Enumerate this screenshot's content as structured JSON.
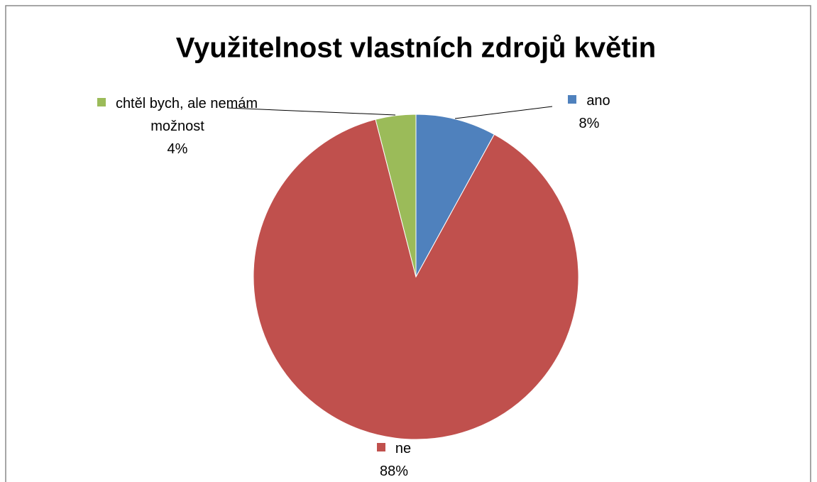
{
  "chart_data": {
    "type": "pie",
    "title": "Využitelnost vlastních zdrojů květin",
    "categories": [
      "ano",
      "ne",
      "chtěl bych, ale nemám možnost"
    ],
    "values": [
      8,
      88,
      4
    ],
    "value_labels": [
      "8%",
      "88%",
      "4%"
    ],
    "colors": [
      "#4f81bd",
      "#c0504d",
      "#9bbb59"
    ]
  }
}
